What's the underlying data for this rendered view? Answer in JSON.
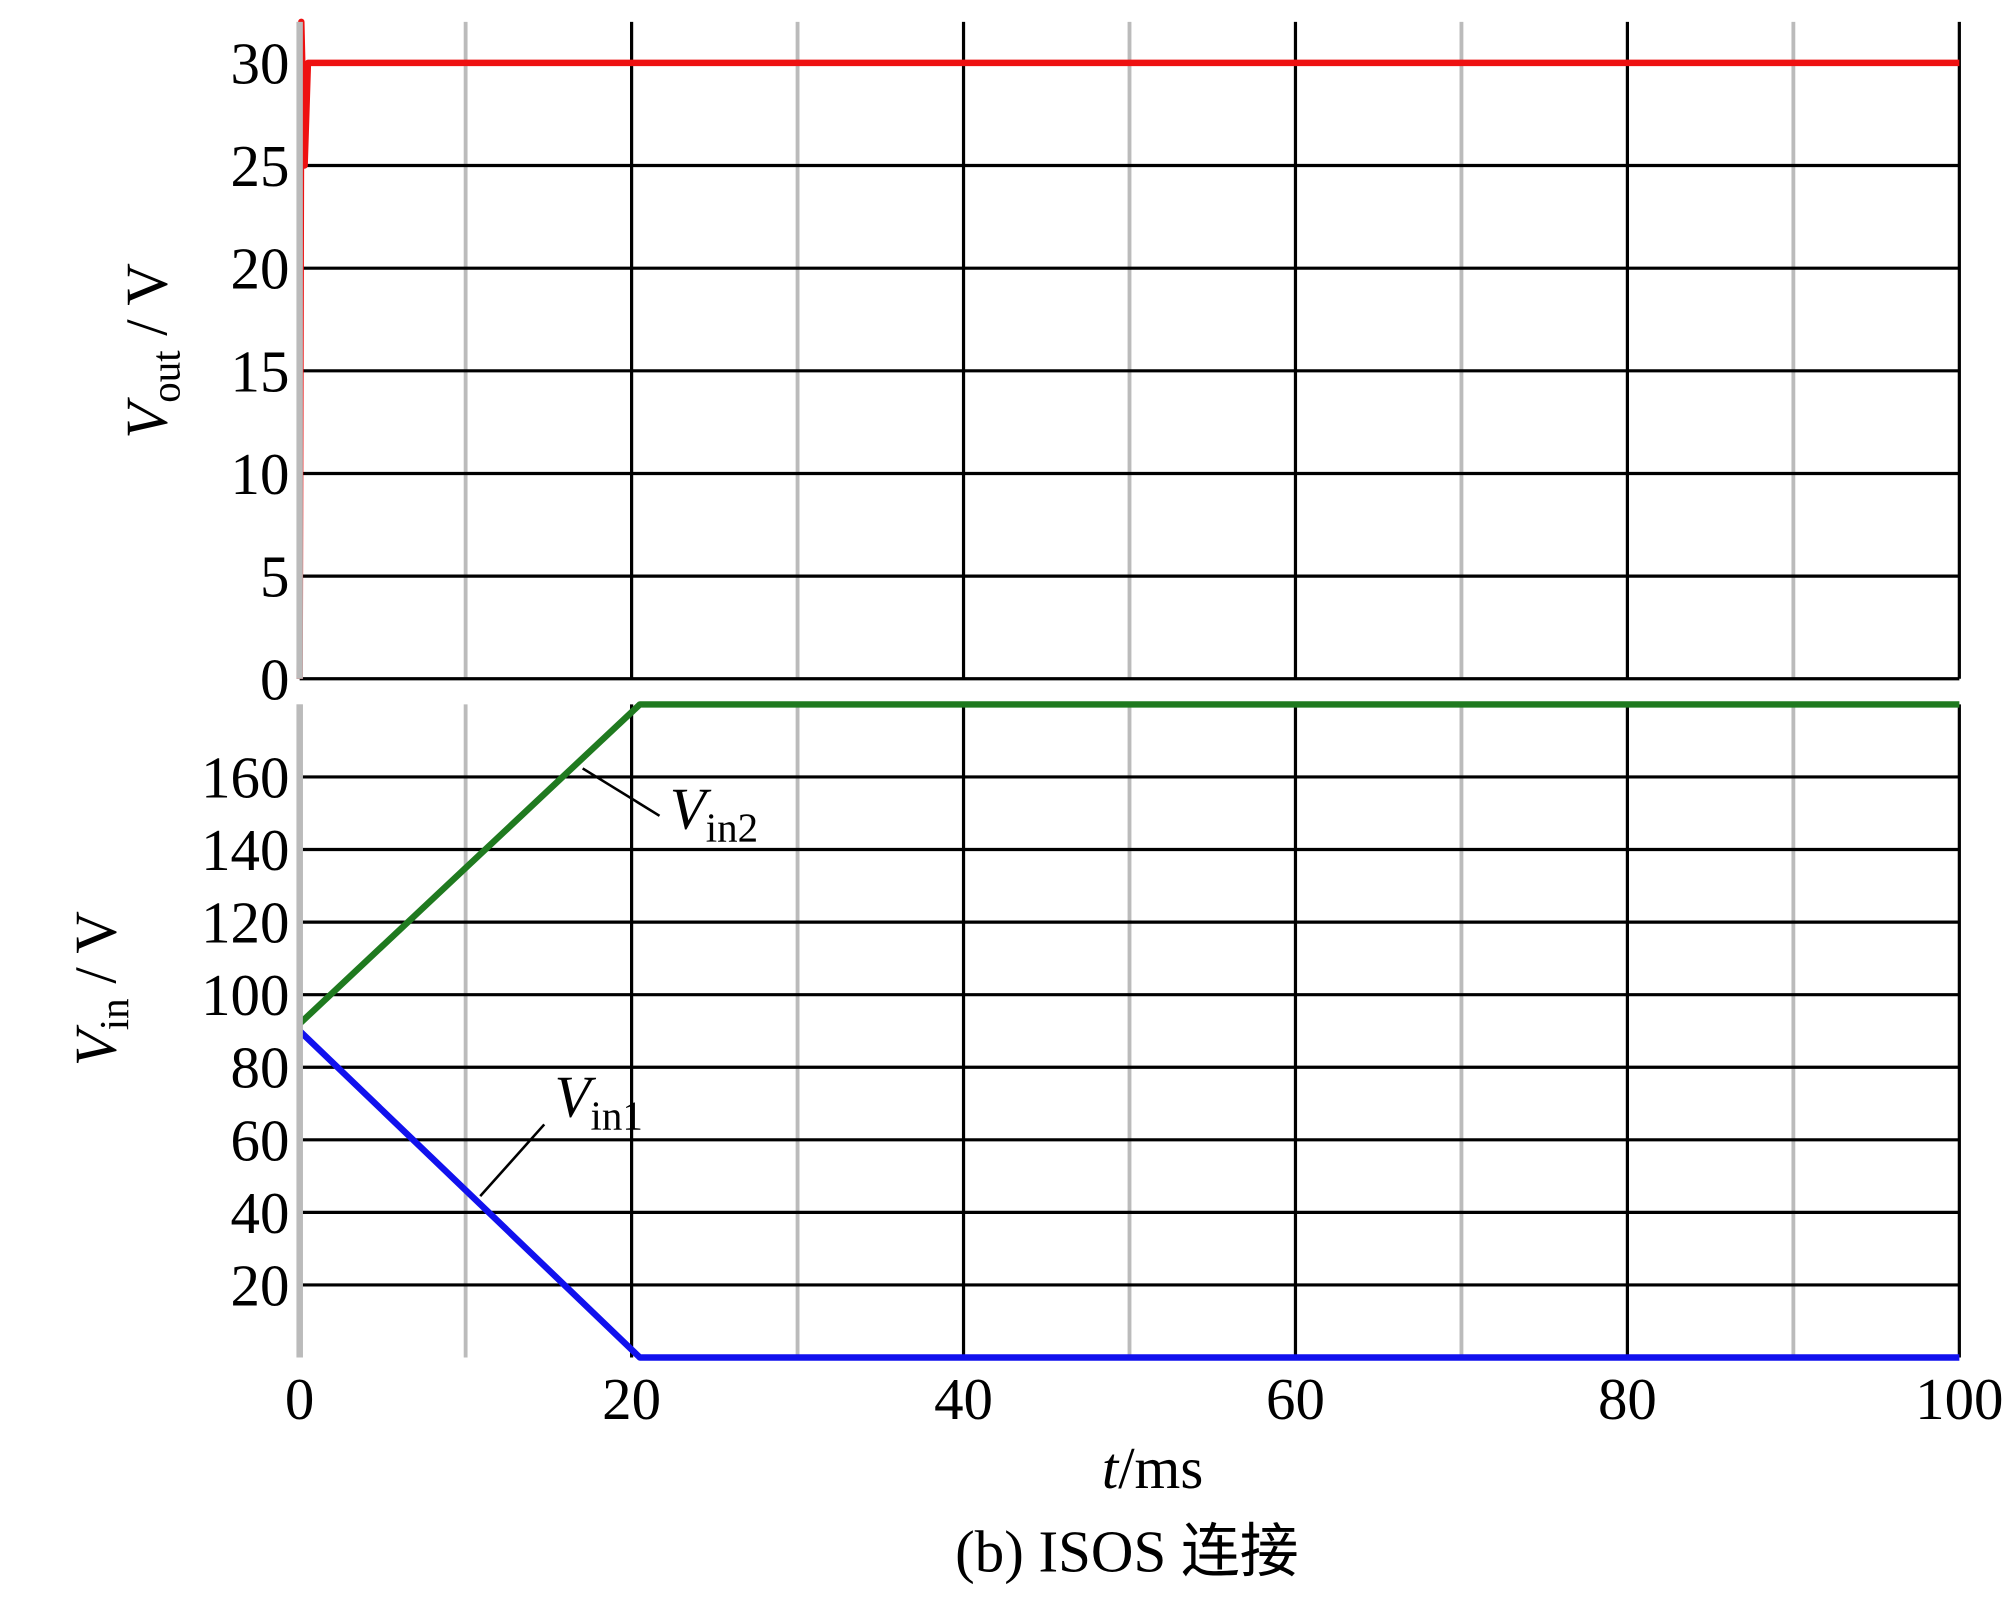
{
  "caption": "(b) ISOS 连接",
  "chart_data": [
    {
      "type": "line",
      "ylabel": {
        "symbol": "V",
        "subscript": "out",
        "unit": " / V"
      },
      "xlim": [
        0,
        100
      ],
      "xticks": [
        0,
        20,
        40,
        60,
        80,
        100
      ],
      "x_minor_grid": [
        10,
        30,
        50,
        70,
        90
      ],
      "ylim": [
        0,
        32
      ],
      "yticks": [
        0,
        5,
        10,
        15,
        20,
        25,
        30
      ],
      "show_xtick_labels": false,
      "grid": true,
      "series": [
        {
          "color": "#ee1111",
          "x": [
            0,
            0.1,
            0.3,
            0.5,
            100
          ],
          "values": [
            0,
            32,
            25,
            30,
            30
          ]
        }
      ]
    },
    {
      "type": "line",
      "ylabel": {
        "symbol": "V",
        "subscript": "in",
        "unit": " / V"
      },
      "xlabel": {
        "symbol": "t",
        "unit": "/ms"
      },
      "xlim": [
        0,
        100
      ],
      "xticks": [
        0,
        20,
        40,
        60,
        80,
        100
      ],
      "x_minor_grid": [
        10,
        30,
        50,
        70,
        90
      ],
      "ylim": [
        0,
        180
      ],
      "yticks": [
        20,
        40,
        60,
        80,
        100,
        120,
        140,
        160
      ],
      "show_xtick_labels": true,
      "grid": true,
      "series": [
        {
          "color": "#1f7a1f",
          "label": {
            "symbol": "V",
            "subscript": "in2"
          },
          "x": [
            0,
            20.5,
            100
          ],
          "values": [
            92,
            180,
            180
          ]
        },
        {
          "color": "#1111ee",
          "label": {
            "symbol": "V",
            "subscript": "in1"
          },
          "x": [
            0,
            20.5,
            100
          ],
          "values": [
            90,
            0,
            0
          ]
        }
      ]
    }
  ]
}
